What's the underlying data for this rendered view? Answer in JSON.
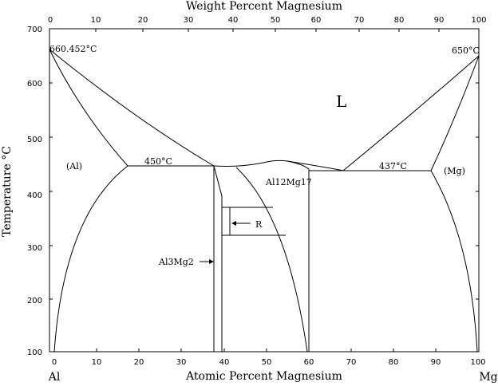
{
  "top_axis": {
    "title": "Weight Percent Magnesium",
    "ticks": [
      "0",
      "10",
      "20",
      "30",
      "40",
      "50",
      "60",
      "70",
      "80",
      "90",
      "100"
    ]
  },
  "bottom_axis": {
    "title": "Atomic Percent Magnesium",
    "ticks": [
      "0",
      "10",
      "20",
      "30",
      "40",
      "50",
      "60",
      "70",
      "80",
      "90",
      "100"
    ],
    "left_end_label": "Al",
    "right_end_label": "Mg"
  },
  "left_axis": {
    "title": "Temperature °C",
    "ticks": [
      "100",
      "200",
      "300",
      "400",
      "500",
      "600",
      "700"
    ]
  },
  "labels": {
    "liquid": "L",
    "al_phase": "(Al)",
    "mg_phase": "(Mg)",
    "al_melting": "660.452°C",
    "mg_melting": "650°C",
    "eutectic_left": "450°C",
    "eutectic_right": "437°C",
    "al12mg17": "Al12Mg17",
    "al3mg2": "Al3Mg2",
    "r_phase": "R"
  }
}
